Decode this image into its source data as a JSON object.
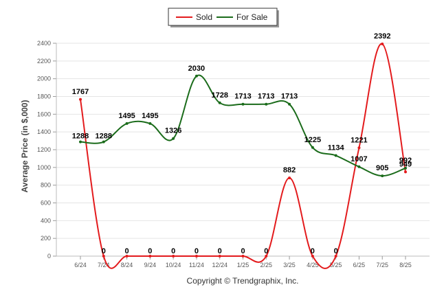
{
  "chart_data": {
    "type": "line",
    "categories": [
      "6/24",
      "7/24",
      "8/24",
      "9/24",
      "10/24",
      "11/24",
      "12/24",
      "1/25",
      "2/25",
      "3/25",
      "4/25",
      "5/25",
      "6/25",
      "7/25",
      "8/25"
    ],
    "series": [
      {
        "name": "Sold",
        "color": "#e31a1c",
        "values": [
          1767,
          0,
          0,
          0,
          0,
          0,
          0,
          0,
          0,
          882,
          0,
          0,
          1221,
          2392,
          949
        ]
      },
      {
        "name": "For Sale",
        "color": "#1a6b1a",
        "values": [
          1288,
          1288,
          1495,
          1495,
          1326,
          2030,
          1728,
          1713,
          1713,
          1713,
          1225,
          1134,
          1007,
          905,
          992
        ]
      }
    ],
    "ylabel": "Average Price (in $,000)",
    "xlabel": "",
    "ylim": [
      0,
      2400
    ],
    "yticks": [
      0,
      200,
      400,
      600,
      800,
      1000,
      1200,
      1400,
      1600,
      1800,
      2000,
      2200,
      2400
    ],
    "grid": true,
    "legend_position": "top-center",
    "credit": "Copyright © Trendgraphix, Inc."
  }
}
